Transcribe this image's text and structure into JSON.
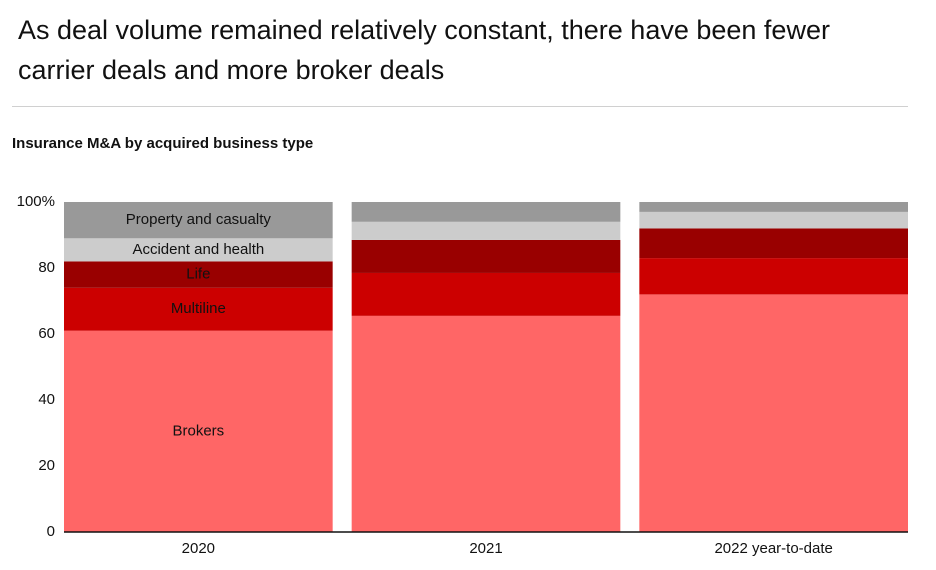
{
  "chart_data": {
    "type": "stacked_bar",
    "title": "As deal volume remained relatively constant, there have been fewer carrier deals and more broker deals",
    "subtitle": "Insurance M&A by acquired business type",
    "categories": [
      "2020",
      "2021",
      "2022 year-to-date"
    ],
    "series": [
      {
        "name": "Brokers",
        "color": "#ff6666",
        "values": [
          61,
          65.5,
          72
        ]
      },
      {
        "name": "Multiline",
        "color": "#cc0000",
        "values": [
          13,
          13,
          11
        ]
      },
      {
        "name": "Life",
        "color": "#990000",
        "values": [
          8,
          10,
          9
        ]
      },
      {
        "name": "Accident and health",
        "color": "#cccccc",
        "values": [
          7,
          5.5,
          5
        ]
      },
      {
        "name": "Property and casualty",
        "color": "#999999",
        "values": [
          11,
          6,
          3
        ]
      }
    ],
    "ylim": [
      0,
      100
    ],
    "yticks": [
      0,
      20,
      40,
      60,
      80,
      {
        "value": 100,
        "label": "100%"
      }
    ],
    "grid": false
  }
}
